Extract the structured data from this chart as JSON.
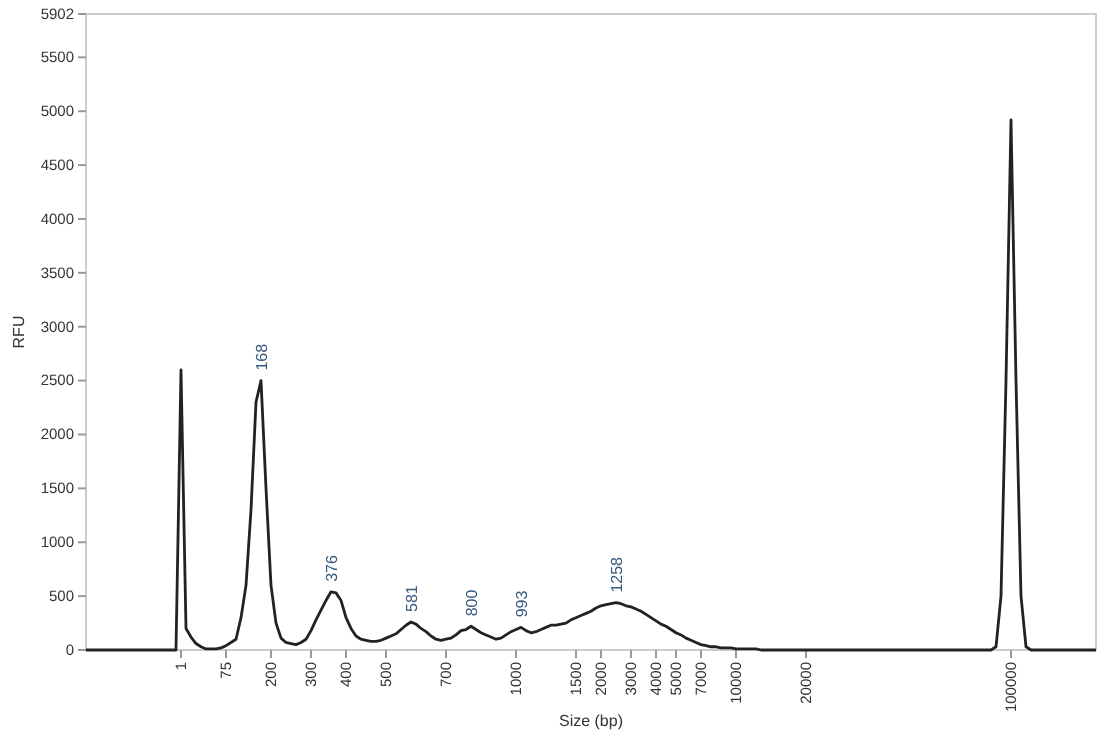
{
  "chart_data": {
    "type": "line",
    "xlabel": "Size (bp)",
    "ylabel": "RFU",
    "ylim": [
      0,
      5902
    ],
    "yticks": [
      0,
      500,
      1000,
      1500,
      2000,
      2500,
      3000,
      3500,
      4000,
      4500,
      5000,
      5500,
      5902
    ],
    "grid": false,
    "marker": "none",
    "line_style": "solid",
    "categories": [
      null,
      null,
      null,
      null,
      null,
      null,
      null,
      null,
      null,
      null,
      null,
      null,
      null,
      null,
      null,
      null,
      null,
      null,
      null,
      "1",
      null,
      null,
      null,
      null,
      null,
      null,
      null,
      null,
      "75",
      null,
      null,
      null,
      null,
      null,
      null,
      null,
      null,
      "200",
      null,
      null,
      null,
      null,
      null,
      null,
      null,
      "300",
      null,
      null,
      null,
      null,
      null,
      null,
      "400",
      null,
      null,
      null,
      null,
      null,
      null,
      null,
      "500",
      null,
      null,
      null,
      null,
      null,
      null,
      null,
      null,
      null,
      null,
      null,
      "700",
      null,
      null,
      null,
      null,
      null,
      null,
      null,
      null,
      null,
      null,
      null,
      null,
      null,
      "1000",
      null,
      null,
      null,
      null,
      null,
      null,
      null,
      null,
      null,
      null,
      null,
      "1500",
      null,
      null,
      null,
      null,
      "2000",
      null,
      null,
      null,
      null,
      null,
      "3000",
      null,
      null,
      null,
      null,
      "4000",
      null,
      null,
      null,
      "5000",
      null,
      null,
      null,
      null,
      "7000",
      null,
      null,
      null,
      null,
      null,
      null,
      "10000",
      null,
      null,
      null,
      null,
      null,
      null,
      null,
      null,
      null,
      null,
      null,
      null,
      null,
      "20000",
      null,
      null,
      null,
      null,
      null,
      null,
      null,
      null,
      null,
      null,
      null,
      null,
      null,
      null,
      null,
      null,
      null,
      null,
      null,
      null,
      null,
      null,
      null,
      null,
      null,
      null,
      null,
      null,
      null,
      null,
      null,
      null,
      null,
      null,
      null,
      null,
      null,
      null,
      null,
      null,
      "100000",
      null,
      null,
      null,
      null,
      null,
      null,
      null,
      null,
      null,
      null,
      null,
      null,
      null,
      null,
      null,
      null,
      null
    ],
    "series": [
      {
        "color": "#222222",
        "values": [
          0,
          0,
          0,
          0,
          0,
          0,
          0,
          0,
          0,
          0,
          0,
          0,
          0,
          0,
          0,
          0,
          0,
          0,
          0,
          2600,
          200,
          120,
          60,
          30,
          10,
          10,
          10,
          20,
          40,
          70,
          100,
          300,
          600,
          1300,
          2300,
          2500,
          1500,
          600,
          250,
          110,
          70,
          60,
          50,
          70,
          100,
          180,
          280,
          370,
          460,
          540,
          530,
          460,
          300,
          200,
          130,
          100,
          90,
          80,
          80,
          90,
          110,
          130,
          150,
          190,
          230,
          260,
          240,
          200,
          170,
          130,
          100,
          90,
          100,
          110,
          140,
          180,
          190,
          220,
          190,
          160,
          140,
          120,
          100,
          110,
          140,
          170,
          190,
          210,
          180,
          160,
          170,
          190,
          210,
          230,
          230,
          240,
          250,
          280,
          300,
          320,
          340,
          360,
          390,
          410,
          420,
          430,
          440,
          430,
          410,
          400,
          380,
          360,
          330,
          300,
          270,
          240,
          220,
          190,
          160,
          140,
          110,
          90,
          70,
          50,
          40,
          30,
          30,
          20,
          20,
          20,
          10,
          10,
          10,
          10,
          10,
          0,
          0,
          0,
          0,
          0,
          0,
          0,
          0,
          0,
          0,
          0,
          0,
          0,
          0,
          0,
          0,
          0,
          0,
          0,
          0,
          0,
          0,
          0,
          0,
          0,
          0,
          0,
          0,
          0,
          0,
          0,
          0,
          0,
          0,
          0,
          0,
          0,
          0,
          0,
          0,
          0,
          0,
          0,
          0,
          0,
          0,
          0,
          30,
          500,
          2500,
          4920,
          2500,
          500,
          30,
          0,
          0,
          0,
          0,
          0,
          0,
          0,
          0,
          0,
          0,
          0,
          0,
          0,
          0
        ]
      }
    ],
    "annotations": [
      {
        "text": "168",
        "y": 2500
      },
      {
        "text": "376",
        "y": 540
      },
      {
        "text": "581",
        "y": 260
      },
      {
        "text": "800",
        "y": 220
      },
      {
        "text": "993",
        "y": 210
      },
      {
        "text": "1258",
        "y": 440
      }
    ]
  }
}
